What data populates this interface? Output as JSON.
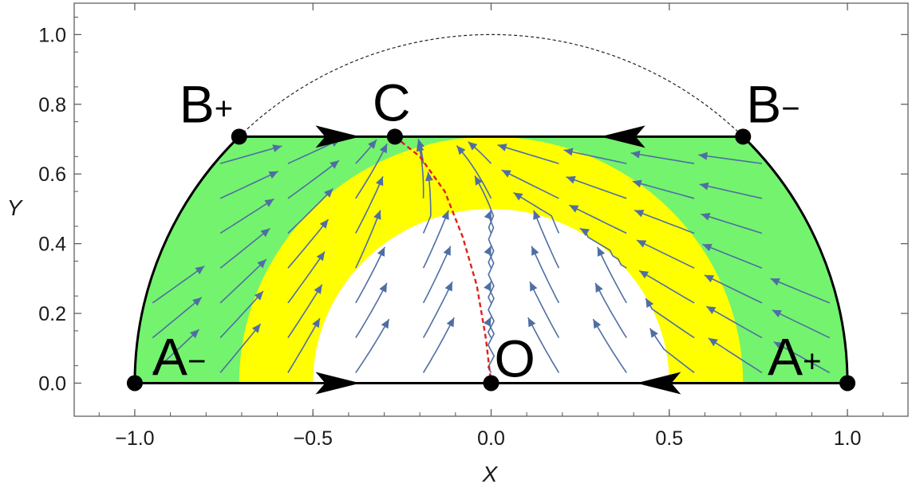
{
  "chart_data": {
    "type": "phase-portrait",
    "title": "",
    "xlabel": "X",
    "ylabel": "Y",
    "xlim": [
      -1.17,
      1.17
    ],
    "ylim": [
      -0.095,
      1.09
    ],
    "xticks": [
      -1.0,
      -0.5,
      0.0,
      0.5,
      1.0
    ],
    "xtick_labels": [
      "−1.0",
      "−0.5",
      "0.0",
      "0.5",
      "1.0"
    ],
    "yticks": [
      0.0,
      0.2,
      0.4,
      0.6,
      0.8,
      1.0
    ],
    "ytick_labels": [
      "0.0",
      "0.2",
      "0.4",
      "0.6",
      "0.8",
      "1.0"
    ],
    "grid": false,
    "regions": {
      "outer_radius": 1.0,
      "top_cut_y": 0.7071,
      "yellow_radius": 0.7071,
      "white_radius": 0.5,
      "colors": {
        "green": "#74f36e",
        "yellow": "#ffff00",
        "white": "#ffffff"
      }
    },
    "reference_circle_radius": 1.0,
    "points": [
      {
        "name": "A-",
        "label": "A",
        "sub": "−",
        "x": -1.0,
        "y": 0.0
      },
      {
        "name": "A+",
        "label": "A",
        "sub": "+",
        "x": 1.0,
        "y": 0.0
      },
      {
        "name": "B+",
        "label": "B",
        "sub": "+",
        "x": -0.7071,
        "y": 0.7071
      },
      {
        "name": "B-",
        "label": "B",
        "sub": "−",
        "x": 0.7071,
        "y": 0.7071
      },
      {
        "name": "C",
        "label": "C",
        "sub": "",
        "x": -0.27,
        "y": 0.7071
      },
      {
        "name": "O",
        "label": "O",
        "sub": "",
        "x": 0.0,
        "y": 0.0
      }
    ],
    "separatrix": {
      "color": "#e0201c",
      "x": [
        -0.27,
        -0.2,
        -0.13,
        -0.08,
        -0.04,
        -0.015,
        0.0
      ],
      "y": [
        0.7071,
        0.65,
        0.55,
        0.42,
        0.28,
        0.13,
        0.0
      ]
    },
    "boundary_arrows": [
      {
        "x": -0.43,
        "y": 0.7071,
        "dir": "right"
      },
      {
        "x": 0.37,
        "y": 0.7071,
        "dir": "left"
      },
      {
        "x": -0.43,
        "y": 0.0,
        "dir": "right"
      },
      {
        "x": 0.47,
        "y": 0.0,
        "dir": "left"
      }
    ],
    "stream_color": "#4f6ea3"
  }
}
